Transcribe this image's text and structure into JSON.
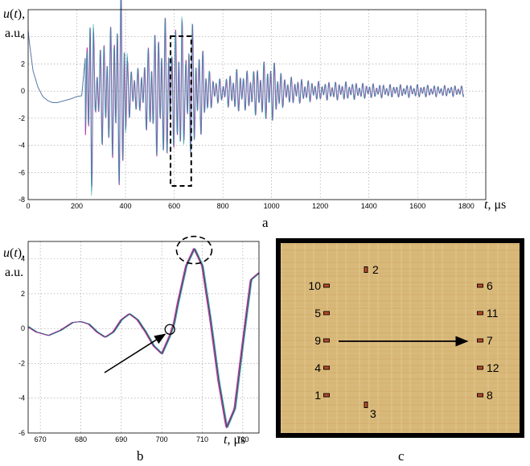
{
  "chart_data": [
    {
      "panel": "a",
      "type": "line",
      "ylabel_var": "u",
      "ylabel_arg": "t",
      "ylabel_unit": "a.u.",
      "xlabel_var": "t",
      "xlabel_unit": "μs",
      "xlim": [
        0,
        1880
      ],
      "ylim": [
        -8,
        6
      ],
      "xticks": [
        0,
        200,
        400,
        600,
        800,
        1000,
        1200,
        1400,
        1600,
        1800
      ],
      "yticks": [
        -8,
        -6,
        -4,
        -2,
        0,
        2,
        4
      ],
      "grid": true,
      "series": [
        {
          "color": "#cc2299"
        },
        {
          "color": "#4a74c9"
        },
        {
          "color": "#2aa7a0"
        }
      ],
      "envelope": {
        "x": [
          0,
          5,
          20,
          40,
          60,
          80,
          100,
          120,
          140,
          160,
          180,
          200,
          220,
          240,
          250,
          260,
          275,
          300,
          320,
          340,
          355,
          370,
          380,
          395,
          410,
          430,
          460,
          500,
          530,
          560,
          575,
          590,
          600,
          615,
          630,
          645,
          660,
          680,
          700,
          720,
          740,
          760,
          800,
          850,
          900,
          950,
          980,
          1000,
          1020,
          1050,
          1100,
          1200,
          1300,
          1400,
          1500,
          1600,
          1700,
          1780,
          1790
        ],
        "y": [
          4.5,
          3.6,
          1.5,
          0.3,
          -0.4,
          -0.7,
          -0.85,
          -0.85,
          -0.75,
          -0.65,
          -0.55,
          -0.4,
          -0.35,
          3.5,
          5.5,
          6.2,
          1.5,
          2.8,
          3.2,
          3.5,
          4.6,
          5,
          5.8,
          5.7,
          1.5,
          1.3,
          1.2,
          2.7,
          3.6,
          3.9,
          4.1,
          2.5,
          3.2,
          4.3,
          4.5,
          2,
          4,
          3.5,
          2.2,
          2.5,
          1.2,
          0.8,
          0.6,
          1.2,
          1.1,
          1.4,
          1.7,
          1.7,
          1.5,
          0.8,
          0.7,
          0.5,
          0.5,
          0.4,
          0.35,
          0.35,
          0.3,
          0.3,
          0.3
        ]
      },
      "zoom_box_x": [
        585,
        670
      ]
    },
    {
      "panel": "b",
      "type": "line",
      "ylabel_var": "u",
      "ylabel_arg": "t",
      "ylabel_unit": "a.u.",
      "xlabel_var": "t",
      "xlabel_unit": "μs",
      "xlim": [
        667,
        724
      ],
      "ylim": [
        -6,
        5
      ],
      "xticks": [
        670,
        680,
        690,
        700,
        710,
        720
      ],
      "yticks": [
        -6,
        -4,
        -2,
        0,
        2,
        4
      ],
      "grid": true,
      "x": [
        667,
        669,
        672,
        675,
        678,
        680,
        682,
        684,
        686,
        688,
        690,
        692,
        694,
        696,
        698,
        700,
        702,
        703,
        704,
        706,
        708,
        710,
        712,
        714,
        716,
        718,
        720,
        722,
        724
      ],
      "waveform_y": [
        0.1,
        -0.2,
        -0.4,
        -0.1,
        0.35,
        0.4,
        0.25,
        -0.2,
        -0.5,
        -0.2,
        0.5,
        0.85,
        0.5,
        -0.2,
        -1.0,
        -1.45,
        -0.4,
        0.3,
        1.5,
        3.6,
        4.6,
        3.6,
        0.5,
        -3.0,
        -5.7,
        -4.6,
        -0.8,
        2.8,
        3.2
      ],
      "series": [
        {
          "color": "#cc2299",
          "shift": -0.2
        },
        {
          "color": "#e0402a",
          "shift": 0
        },
        {
          "color": "#2f5fd0",
          "shift": 0.15
        },
        {
          "color": "#2aa7a0",
          "shift": 0.3
        },
        {
          "color": "#333333",
          "shift": 0.08
        },
        {
          "color": "#8a3fb0",
          "shift": -0.1
        }
      ],
      "onset_marker": [
        702,
        -0.05
      ],
      "peak_marker": [
        708,
        4.6
      ]
    },
    {
      "panel": "c",
      "type": "diagram",
      "sensors": [
        {
          "label": "1",
          "side": "left-mark"
        },
        {
          "label": "2",
          "side": "right-of-mark"
        },
        {
          "label": "3",
          "side": "below-mark"
        },
        {
          "label": "4",
          "side": "left-mark"
        },
        {
          "label": "5",
          "side": "left-mark"
        },
        {
          "label": "6",
          "side": "right-of-mark"
        },
        {
          "label": "7",
          "side": "right-of-mark"
        },
        {
          "label": "8",
          "side": "right-of-mark"
        },
        {
          "label": "9",
          "side": "left-mark"
        },
        {
          "label": "10",
          "side": "left-mark"
        },
        {
          "label": "11",
          "side": "right-of-mark"
        },
        {
          "label": "12",
          "side": "right-of-mark"
        }
      ],
      "arrow": {
        "from": "9",
        "to": "7"
      }
    }
  ]
}
